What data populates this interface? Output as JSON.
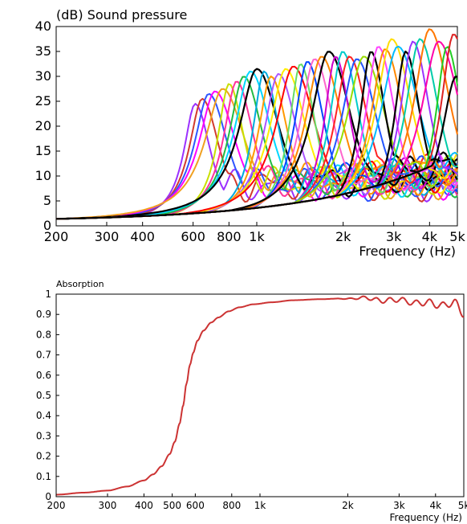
{
  "chart_data": [
    {
      "type": "line",
      "title": "(dB)  Sound pressure",
      "xlabel": "Frequency  (Hz)",
      "ylabel": "",
      "xscale": "log",
      "xlim": [
        200,
        5000
      ],
      "ylim": [
        0,
        40
      ],
      "grid": false,
      "legend": "none",
      "x_ticks": [
        {
          "value": 200,
          "label": "200"
        },
        {
          "value": 300,
          "label": "300"
        },
        {
          "value": 400,
          "label": "400"
        },
        {
          "value": 600,
          "label": "600"
        },
        {
          "value": 800,
          "label": "800"
        },
        {
          "value": 1000,
          "label": "1k"
        },
        {
          "value": 2000,
          "label": "2k"
        },
        {
          "value": 3000,
          "label": "3k"
        },
        {
          "value": 4000,
          "label": "4k"
        },
        {
          "value": 5000,
          "label": "5k"
        }
      ],
      "y_ticks": [
        0,
        5,
        10,
        15,
        20,
        25,
        30,
        35,
        40
      ],
      "series": [
        {
          "peak_hz": 610,
          "peak_db": 24.5,
          "color": "#9b30ff"
        },
        {
          "peak_hz": 645,
          "peak_db": 25.5,
          "color": "#d23b2e"
        },
        {
          "peak_hz": 680,
          "peak_db": 26.5,
          "color": "#2f55ff"
        },
        {
          "peak_hz": 715,
          "peak_db": 27.0,
          "color": "#ff00ff"
        },
        {
          "peak_hz": 760,
          "peak_db": 27.5,
          "color": "#f0a020"
        },
        {
          "peak_hz": 800,
          "peak_db": 28.5,
          "color": "#c8e000"
        },
        {
          "peak_hz": 850,
          "peak_db": 29.0,
          "color": "#ff3399"
        },
        {
          "peak_hz": 900,
          "peak_db": 30.0,
          "color": "#22bb44"
        },
        {
          "peak_hz": 950,
          "peak_db": 31.0,
          "color": "#00d8ff"
        },
        {
          "peak_hz": 1000,
          "peak_db": 31.5,
          "color": "#000000"
        },
        {
          "peak_hz": 1060,
          "peak_db": 31.0,
          "color": "#00aadd"
        },
        {
          "peak_hz": 1120,
          "peak_db": 30.0,
          "color": "#ff9900"
        },
        {
          "peak_hz": 1190,
          "peak_db": 30.5,
          "color": "#aa55ff"
        },
        {
          "peak_hz": 1260,
          "peak_db": 31.5,
          "color": "#ffee00"
        },
        {
          "peak_hz": 1340,
          "peak_db": 32.0,
          "color": "#ff0000"
        },
        {
          "peak_hz": 1420,
          "peak_db": 32.5,
          "color": "#66dd66"
        },
        {
          "peak_hz": 1500,
          "peak_db": 33.0,
          "color": "#0044ff"
        },
        {
          "peak_hz": 1590,
          "peak_db": 33.5,
          "color": "#ff66cc"
        },
        {
          "peak_hz": 1680,
          "peak_db": 34.0,
          "color": "#ff8800"
        },
        {
          "peak_hz": 1780,
          "peak_db": 35.0,
          "color": "#000000"
        },
        {
          "peak_hz": 1880,
          "peak_db": 34.0,
          "color": "#cc00cc"
        },
        {
          "peak_hz": 1990,
          "peak_db": 35.0,
          "color": "#00cccc"
        },
        {
          "peak_hz": 2100,
          "peak_db": 34.0,
          "color": "#ff2222"
        },
        {
          "peak_hz": 2230,
          "peak_db": 33.5,
          "color": "#2255ff"
        },
        {
          "peak_hz": 2360,
          "peak_db": 34.0,
          "color": "#99dd00"
        },
        {
          "peak_hz": 2500,
          "peak_db": 35.0,
          "color": "#000000"
        },
        {
          "peak_hz": 2650,
          "peak_db": 36.0,
          "color": "#ff44ff"
        },
        {
          "peak_hz": 2800,
          "peak_db": 35.5,
          "color": "#ff8800"
        },
        {
          "peak_hz": 2950,
          "peak_db": 37.5,
          "color": "#ffdd00"
        },
        {
          "peak_hz": 3100,
          "peak_db": 36.0,
          "color": "#00bbff"
        },
        {
          "peak_hz": 3300,
          "peak_db": 35.0,
          "color": "#000000"
        },
        {
          "peak_hz": 3500,
          "peak_db": 37.0,
          "color": "#9933ff"
        },
        {
          "peak_hz": 3700,
          "peak_db": 37.5,
          "color": "#00ccaa"
        },
        {
          "peak_hz": 4000,
          "peak_db": 39.5,
          "color": "#ff7700"
        },
        {
          "peak_hz": 4300,
          "peak_db": 37.0,
          "color": "#ff00aa"
        },
        {
          "peak_hz": 4600,
          "peak_db": 36.0,
          "color": "#22cc22"
        },
        {
          "peak_hz": 4850,
          "peak_db": 38.5,
          "color": "#dd2222"
        },
        {
          "peak_hz": 4950,
          "peak_db": 30.0,
          "color": "#000000"
        }
      ]
    },
    {
      "type": "line",
      "title": "Absorption",
      "xlabel": "Frequency  (Hz)",
      "ylabel": "",
      "xscale": "log",
      "xlim": [
        200,
        5000
      ],
      "ylim": [
        0,
        1
      ],
      "grid": false,
      "legend": "none",
      "x_ticks": [
        {
          "value": 200,
          "label": "200"
        },
        {
          "value": 300,
          "label": "300"
        },
        {
          "value": 400,
          "label": "400"
        },
        {
          "value": 500,
          "label": "500"
        },
        {
          "value": 600,
          "label": "600"
        },
        {
          "value": 800,
          "label": "800"
        },
        {
          "value": 1000,
          "label": "1k"
        },
        {
          "value": 2000,
          "label": "2k"
        },
        {
          "value": 3000,
          "label": "3k"
        },
        {
          "value": 4000,
          "label": "4k"
        },
        {
          "value": 5000,
          "label": "5k"
        }
      ],
      "y_ticks": [
        {
          "value": 0,
          "label": "0"
        },
        {
          "value": 0.1,
          "label": "0.1"
        },
        {
          "value": 0.2,
          "label": "0.2"
        },
        {
          "value": 0.3,
          "label": "0.3"
        },
        {
          "value": 0.4,
          "label": "0.4"
        },
        {
          "value": 0.5,
          "label": "0.5"
        },
        {
          "value": 0.6,
          "label": "0.6"
        },
        {
          "value": 0.7,
          "label": "0.7"
        },
        {
          "value": 0.8,
          "label": "0.8"
        },
        {
          "value": 0.9,
          "label": "0.9"
        },
        {
          "value": 1,
          "label": "1"
        }
      ],
      "series": [
        {
          "color": "#cc3333",
          "x": [
            200,
            250,
            300,
            350,
            400,
            430,
            460,
            490,
            510,
            530,
            545,
            560,
            575,
            590,
            610,
            640,
            680,
            720,
            780,
            850,
            950,
            1100,
            1300,
            1600,
            2000,
            2300,
            2600,
            3000,
            3400,
            3800,
            4200,
            4600,
            5000
          ],
          "y": [
            0.01,
            0.02,
            0.03,
            0.05,
            0.08,
            0.11,
            0.15,
            0.21,
            0.27,
            0.36,
            0.45,
            0.56,
            0.65,
            0.71,
            0.77,
            0.82,
            0.86,
            0.885,
            0.915,
            0.935,
            0.95,
            0.96,
            0.97,
            0.975,
            0.98,
            0.99,
            0.98,
            0.985,
            0.97,
            0.975,
            0.96,
            0.98,
            0.93
          ]
        }
      ]
    }
  ]
}
